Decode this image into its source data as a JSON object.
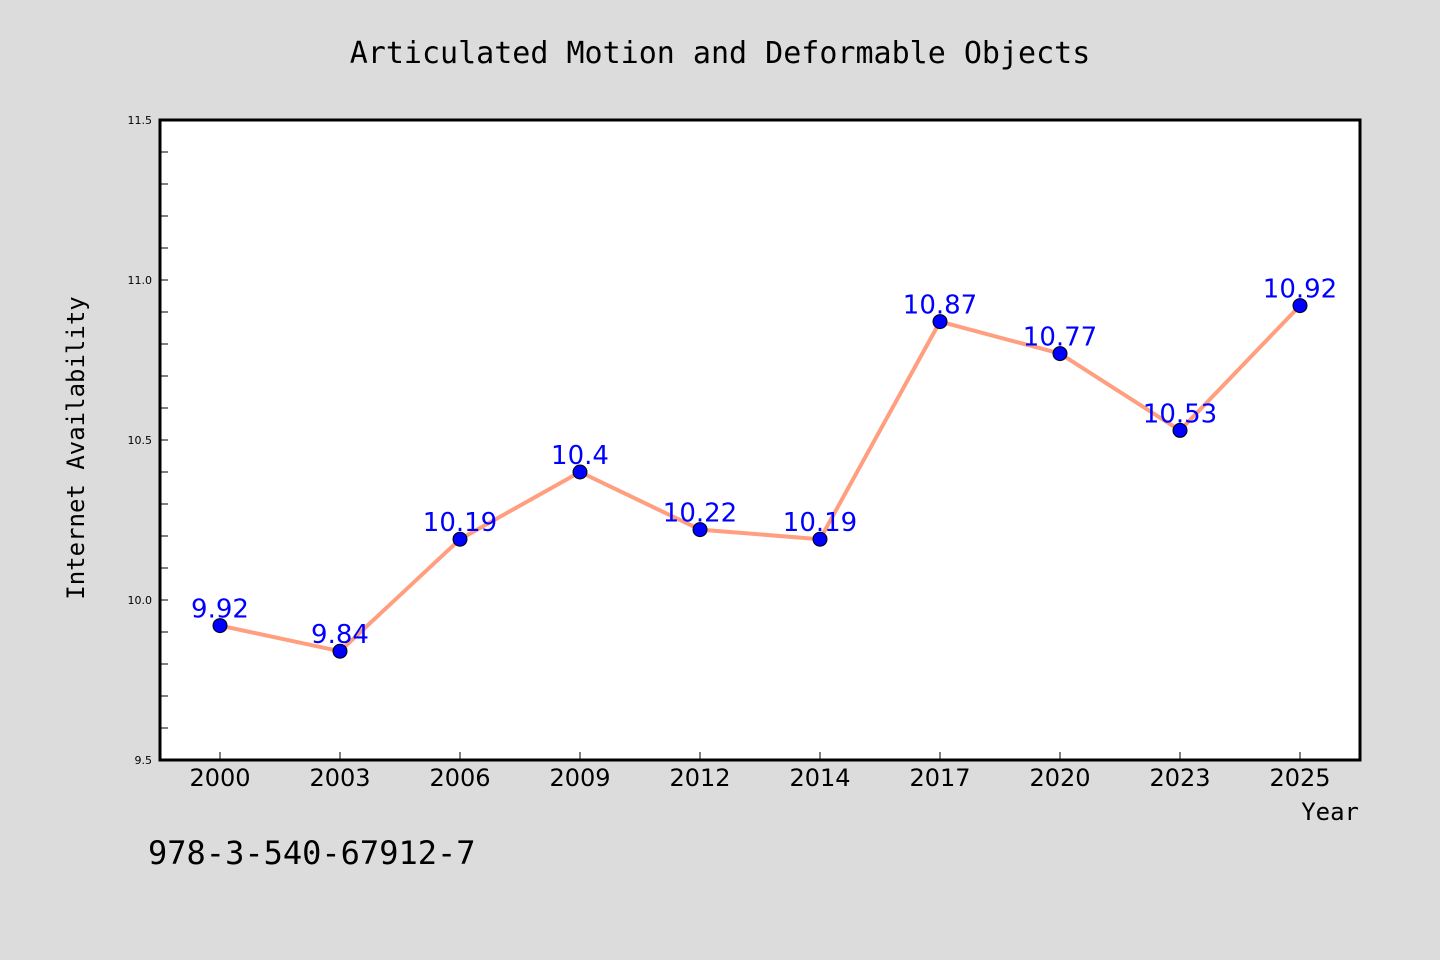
{
  "colors": {
    "background": "#dcdcdc",
    "plot_background": "#ffffff",
    "line": "#ff9f7f",
    "marker": "#0000ff",
    "data_label": "#0000ff",
    "text": "#000000"
  },
  "footer_text": "978-3-540-67912-7",
  "chart_data": {
    "type": "line",
    "title": "Articulated Motion and Deformable Objects",
    "xlabel": "Year",
    "ylabel": "Internet Availability",
    "categories": [
      "2000",
      "2003",
      "2006",
      "2009",
      "2012",
      "2014",
      "2017",
      "2020",
      "2023",
      "2025"
    ],
    "series": [
      {
        "values": [
          9.92,
          9.84,
          10.19,
          10.4,
          10.22,
          10.19,
          10.87,
          10.77,
          10.53,
          10.92
        ],
        "labels": [
          "9.92",
          "9.84",
          "10.19",
          "10.4",
          "10.22",
          "10.19",
          "10.87",
          "10.77",
          "10.53",
          "10.92"
        ]
      }
    ],
    "ylim": [
      9.5,
      11.5
    ],
    "yticks": [
      9.5,
      10.0,
      10.5,
      11.0,
      11.5
    ],
    "ytick_labels": [
      "9.5",
      "10.0",
      "10.5",
      "11.0",
      "11.5"
    ],
    "grid": false,
    "legend": "none"
  }
}
